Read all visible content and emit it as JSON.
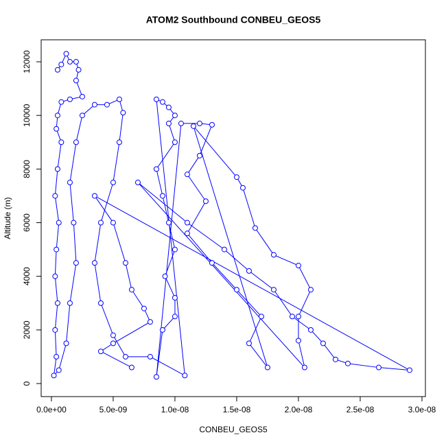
{
  "chart_data": {
    "type": "line",
    "title": "ATOM2 Southbound CONBEU_GEOS5",
    "x_label": "CONBEU_GEOS5",
    "y_label": "Altitude (m)",
    "color": "#0000ff",
    "markers": true,
    "xlim": [
      -8.3e-10,
      3.028e-08
    ],
    "ylim": [
      -486,
      12820
    ],
    "xticks": [
      {
        "value": 0,
        "label": "0.0e+00"
      },
      {
        "value": 5e-09,
        "label": "5.0e-09"
      },
      {
        "value": 1e-08,
        "label": "1.0e-08"
      },
      {
        "value": 1.5e-08,
        "label": "1.5e-08"
      },
      {
        "value": 2e-08,
        "label": "2.0e-08"
      },
      {
        "value": 2.5e-08,
        "label": "2.5e-08"
      },
      {
        "value": 3e-08,
        "label": "3.0e-08"
      }
    ],
    "yticks": [
      0,
      2000,
      4000,
      6000,
      8000,
      10000,
      12000
    ],
    "x": [
      5e-10,
      8e-10,
      1.2e-09,
      1.5e-09,
      2e-09,
      2.2e-09,
      2e-09,
      2.5e-09,
      1.5e-09,
      8e-10,
      5e-10,
      4e-10,
      8e-10,
      5e-10,
      3e-10,
      6e-10,
      4e-10,
      3e-10,
      5e-10,
      3e-10,
      4e-10,
      2e-10,
      6e-10,
      1.2e-09,
      1.5e-09,
      2e-09,
      1.8e-09,
      1.5e-09,
      2e-09,
      2.5e-09,
      3.5e-09,
      4.5e-09,
      5.5e-09,
      5.8e-09,
      5.5e-09,
      5e-09,
      4e-09,
      3.5e-09,
      4e-09,
      5e-09,
      6e-09,
      8e-09,
      1.08e-08,
      8.5e-09,
      9e-09,
      9.5e-09,
      1e-08,
      9.5e-09,
      1e-08,
      8.5e-09,
      9e-09,
      9.5e-09,
      1e-08,
      9.2e-09,
      1e-08,
      1e-08,
      9e-09,
      8.5e-09,
      1.05e-08,
      1.2e-08,
      1.3e-08,
      1.2e-08,
      1.1e-08,
      1.25e-08,
      1.1e-08,
      1.3e-08,
      1.5e-08,
      1.7e-08,
      1.6e-08,
      1.75e-08,
      1.15e-08,
      1.5e-08,
      1.55e-08,
      1.65e-08,
      1.8e-08,
      2e-08,
      2.1e-08,
      2e-08,
      2e-08,
      2.05e-08,
      7e-09,
      1.1e-08,
      1.4e-08,
      1.6e-08,
      1.8e-08,
      1.95e-08,
      2.1e-08,
      2.2e-08,
      2.3e-08,
      2.4e-08,
      2.65e-08,
      2.9e-08,
      3.5e-09,
      5e-09,
      6e-09,
      6.5e-09,
      7.5e-09,
      8e-09,
      5e-09,
      4e-09,
      6.5e-09
    ],
    "values": [
      11700,
      11900,
      12300,
      12000,
      12000,
      11700,
      11300,
      10700,
      10600,
      10500,
      10000,
      9500,
      9000,
      8000,
      7000,
      6000,
      5000,
      4000,
      3000,
      2000,
      1000,
      300,
      500,
      1500,
      3000,
      4500,
      6000,
      7500,
      9000,
      10000,
      10400,
      10400,
      10600,
      10100,
      9000,
      7500,
      6000,
      4500,
      3000,
      1800,
      1000,
      1000,
      300,
      10600,
      10500,
      10300,
      10000,
      9700,
      9000,
      8000,
      7000,
      6000,
      5000,
      4000,
      3200,
      2500,
      2000,
      250,
      9700,
      9700,
      9650,
      8500,
      7800,
      6800,
      5600,
      4500,
      3500,
      2500,
      1500,
      600,
      9600,
      7700,
      7300,
      5800,
      4800,
      4400,
      3500,
      2500,
      1600,
      600,
      7500,
      6000,
      5000,
      4200,
      3500,
      2500,
      2000,
      1500,
      900,
      750,
      600,
      500,
      7000,
      6000,
      4500,
      3500,
      2800,
      2300,
      1500,
      1200,
      600
    ]
  }
}
